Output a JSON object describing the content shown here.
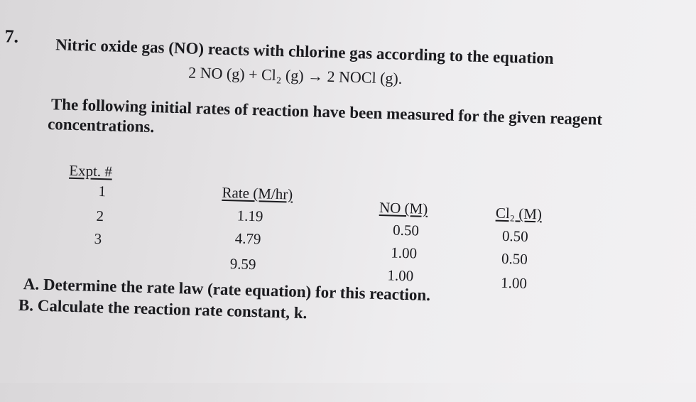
{
  "question": {
    "number": "7.",
    "intro_line1": "Nitric oxide gas (NO) reacts with chlorine gas according to the equation",
    "equation": "2 NO (g)  +  Cl₂ (g) → 2 NOCl (g).",
    "para_line1": "The following initial rates of reaction have been measured for the given reagent",
    "para_line2": "concentrations."
  },
  "table": {
    "headers": {
      "expt": "Expt. #",
      "rate": "Rate (M/hr)",
      "no": "NO (M)",
      "cl2": "Cl₂ (M)"
    },
    "expt": [
      "1",
      "2",
      "3"
    ],
    "rate": [
      "1.19",
      "4.79",
      "9.59"
    ],
    "no": [
      "0.50",
      "1.00",
      "1.00"
    ],
    "cl2": [
      "0.50",
      "0.50",
      "1.00"
    ]
  },
  "tasks": {
    "a": "A. Determine the rate law (rate equation) for this reaction.",
    "b": "B. Calculate the reaction rate constant, k."
  }
}
